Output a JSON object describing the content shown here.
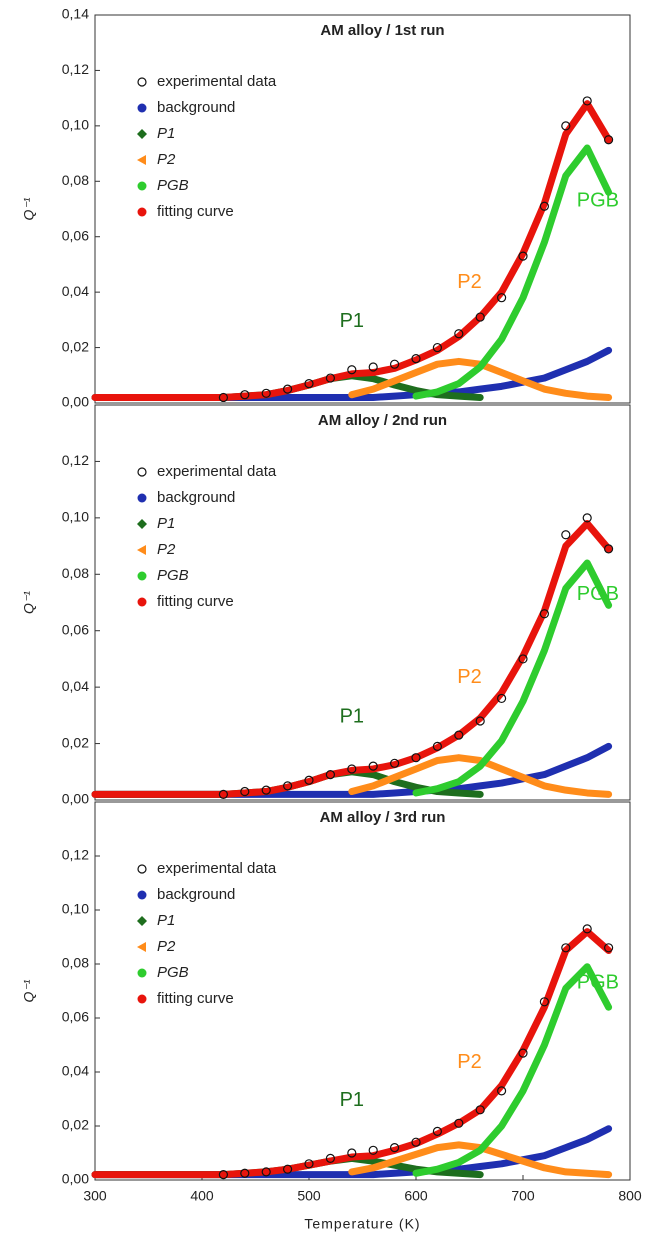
{
  "chart_data": [
    {
      "type": "scatter",
      "title": "AM alloy / 1st run",
      "ylabel": "Q⁻¹",
      "xlim": [
        300,
        800
      ],
      "ylim": [
        0,
        0.14
      ],
      "yticks": [
        {
          "value": 0,
          "label": "0,00"
        },
        {
          "value": 0.02,
          "label": "0,02"
        },
        {
          "value": 0.04,
          "label": "0,04"
        },
        {
          "value": 0.06,
          "label": "0,06"
        },
        {
          "value": 0.08,
          "label": "0,08"
        },
        {
          "value": 0.1,
          "label": "0,10"
        },
        {
          "value": 0.12,
          "label": "0,12"
        },
        {
          "value": 0.14,
          "label": "0,14"
        }
      ],
      "x": [
        300,
        320,
        340,
        360,
        380,
        400,
        420,
        440,
        460,
        480,
        500,
        520,
        540,
        560,
        580,
        600,
        620,
        640,
        660,
        680,
        700,
        720,
        740,
        760,
        780
      ],
      "series": [
        {
          "name": "experimental data",
          "color": "#111111",
          "marker": "open-circle",
          "values": [
            null,
            null,
            null,
            null,
            null,
            null,
            0.002,
            0.003,
            0.0035,
            0.005,
            0.007,
            0.009,
            0.012,
            0.013,
            0.014,
            0.016,
            0.02,
            0.025,
            0.031,
            0.038,
            0.053,
            0.071,
            0.1,
            0.109,
            0.095
          ]
        },
        {
          "name": "background",
          "color": "#1f2fb0",
          "marker": "circle",
          "values": [
            0.002,
            0.002,
            0.002,
            0.002,
            0.002,
            0.002,
            0.002,
            0.002,
            0.002,
            0.002,
            0.002,
            0.002,
            0.002,
            0.002,
            0.0025,
            0.003,
            0.0035,
            0.004,
            0.005,
            0.006,
            0.0075,
            0.009,
            0.012,
            0.015,
            0.019
          ]
        },
        {
          "name": "P1",
          "color": "#1e6e1e",
          "marker": "diamond",
          "values": [
            0.002,
            0.002,
            0.002,
            0.002,
            0.002,
            0.002,
            0.002,
            0.0025,
            0.003,
            0.0045,
            0.0065,
            0.0088,
            0.0098,
            0.0088,
            0.0065,
            0.0045,
            0.003,
            0.0025,
            0.002,
            null,
            null,
            null,
            null,
            null,
            null
          ]
        },
        {
          "name": "P2",
          "color": "#ff8c1a",
          "marker": "triangle",
          "values": [
            null,
            null,
            null,
            null,
            null,
            null,
            null,
            null,
            null,
            null,
            null,
            null,
            0.003,
            0.005,
            0.008,
            0.011,
            0.014,
            0.015,
            0.014,
            0.011,
            0.008,
            0.005,
            0.0035,
            0.0025,
            0.002
          ]
        },
        {
          "name": "PGB",
          "color": "#2ecc2e",
          "marker": "circle",
          "values": [
            null,
            null,
            null,
            null,
            null,
            null,
            null,
            null,
            null,
            null,
            null,
            null,
            null,
            null,
            null,
            0.0025,
            0.004,
            0.007,
            0.013,
            0.023,
            0.038,
            0.058,
            0.082,
            0.092,
            0.076
          ]
        },
        {
          "name": "fitting curve",
          "color": "#e8140c",
          "marker": "circle",
          "values": [
            0.002,
            0.002,
            0.002,
            0.002,
            0.002,
            0.002,
            0.002,
            0.0025,
            0.003,
            0.0045,
            0.0065,
            0.0088,
            0.0105,
            0.011,
            0.0125,
            0.0155,
            0.019,
            0.024,
            0.031,
            0.04,
            0.054,
            0.072,
            0.097,
            0.108,
            0.095
          ]
        }
      ],
      "annotations": [
        {
          "text": "P1",
          "color": "#1e6e1e"
        },
        {
          "text": "P2",
          "color": "#ff8c1a"
        },
        {
          "text": "PGB",
          "color": "#2ecc2e"
        }
      ]
    },
    {
      "type": "scatter",
      "title": "AM alloy / 2nd run",
      "ylabel": "Q⁻¹",
      "xlim": [
        300,
        800
      ],
      "ylim": [
        0,
        0.14
      ],
      "yticks": [
        {
          "value": 0,
          "label": "0,00"
        },
        {
          "value": 0.02,
          "label": "0,02"
        },
        {
          "value": 0.04,
          "label": "0,04"
        },
        {
          "value": 0.06,
          "label": "0,06"
        },
        {
          "value": 0.08,
          "label": "0,08"
        },
        {
          "value": 0.1,
          "label": "0,10"
        },
        {
          "value": 0.12,
          "label": "0,12"
        }
      ],
      "x": [
        300,
        320,
        340,
        360,
        380,
        400,
        420,
        440,
        460,
        480,
        500,
        520,
        540,
        560,
        580,
        600,
        620,
        640,
        660,
        680,
        700,
        720,
        740,
        760,
        780
      ],
      "series": [
        {
          "name": "experimental data",
          "color": "#111111",
          "marker": "open-circle",
          "values": [
            null,
            null,
            null,
            null,
            null,
            null,
            0.002,
            0.003,
            0.0035,
            0.005,
            0.007,
            0.009,
            0.011,
            0.012,
            0.013,
            0.015,
            0.019,
            0.023,
            0.028,
            0.036,
            0.05,
            0.066,
            0.094,
            0.1,
            0.089
          ]
        },
        {
          "name": "background",
          "color": "#1f2fb0",
          "marker": "circle",
          "values": [
            0.002,
            0.002,
            0.002,
            0.002,
            0.002,
            0.002,
            0.002,
            0.002,
            0.002,
            0.002,
            0.002,
            0.002,
            0.002,
            0.002,
            0.0025,
            0.003,
            0.0035,
            0.004,
            0.005,
            0.006,
            0.0075,
            0.009,
            0.012,
            0.015,
            0.019
          ]
        },
        {
          "name": "P1",
          "color": "#1e6e1e",
          "marker": "diamond",
          "values": [
            0.002,
            0.002,
            0.002,
            0.002,
            0.002,
            0.002,
            0.002,
            0.0025,
            0.003,
            0.0045,
            0.0065,
            0.009,
            0.01,
            0.009,
            0.0065,
            0.0045,
            0.003,
            0.0025,
            0.002,
            null,
            null,
            null,
            null,
            null,
            null
          ]
        },
        {
          "name": "P2",
          "color": "#ff8c1a",
          "marker": "triangle",
          "values": [
            null,
            null,
            null,
            null,
            null,
            null,
            null,
            null,
            null,
            null,
            null,
            null,
            0.003,
            0.005,
            0.008,
            0.011,
            0.014,
            0.015,
            0.014,
            0.011,
            0.008,
            0.005,
            0.0035,
            0.0025,
            0.002
          ]
        },
        {
          "name": "PGB",
          "color": "#2ecc2e",
          "marker": "circle",
          "values": [
            null,
            null,
            null,
            null,
            null,
            null,
            null,
            null,
            null,
            null,
            null,
            null,
            null,
            null,
            null,
            0.0025,
            0.004,
            0.0065,
            0.012,
            0.021,
            0.035,
            0.053,
            0.075,
            0.084,
            0.069
          ]
        },
        {
          "name": "fitting curve",
          "color": "#e8140c",
          "marker": "circle",
          "values": [
            0.002,
            0.002,
            0.002,
            0.002,
            0.002,
            0.002,
            0.002,
            0.0025,
            0.003,
            0.0045,
            0.0065,
            0.009,
            0.0105,
            0.011,
            0.0125,
            0.015,
            0.0185,
            0.023,
            0.029,
            0.038,
            0.051,
            0.067,
            0.09,
            0.098,
            0.089
          ]
        }
      ],
      "annotations": [
        {
          "text": "P1",
          "color": "#1e6e1e"
        },
        {
          "text": "P2",
          "color": "#ff8c1a"
        },
        {
          "text": "PGB",
          "color": "#2ecc2e"
        }
      ]
    },
    {
      "type": "scatter",
      "title": "AM alloy / 3rd run",
      "ylabel": "Q⁻¹",
      "xlabel": "Temperature (K)",
      "xlim": [
        300,
        800
      ],
      "ylim": [
        0,
        0.14
      ],
      "xticks": [
        300,
        400,
        500,
        600,
        700,
        800
      ],
      "yticks": [
        {
          "value": 0,
          "label": "0,00"
        },
        {
          "value": 0.02,
          "label": "0,02"
        },
        {
          "value": 0.04,
          "label": "0,04"
        },
        {
          "value": 0.06,
          "label": "0,06"
        },
        {
          "value": 0.08,
          "label": "0,08"
        },
        {
          "value": 0.1,
          "label": "0,10"
        },
        {
          "value": 0.12,
          "label": "0,12"
        }
      ],
      "x": [
        300,
        320,
        340,
        360,
        380,
        400,
        420,
        440,
        460,
        480,
        500,
        520,
        540,
        560,
        580,
        600,
        620,
        640,
        660,
        680,
        700,
        720,
        740,
        760,
        780
      ],
      "series": [
        {
          "name": "experimental data",
          "color": "#111111",
          "marker": "open-circle",
          "values": [
            null,
            null,
            null,
            null,
            null,
            null,
            0.002,
            0.0025,
            0.003,
            0.004,
            0.006,
            0.008,
            0.01,
            0.011,
            0.012,
            0.014,
            0.018,
            0.021,
            0.026,
            0.033,
            0.047,
            0.066,
            0.086,
            0.093,
            0.086
          ]
        },
        {
          "name": "background",
          "color": "#1f2fb0",
          "marker": "circle",
          "values": [
            0.002,
            0.002,
            0.002,
            0.002,
            0.002,
            0.002,
            0.002,
            0.002,
            0.002,
            0.002,
            0.002,
            0.002,
            0.002,
            0.002,
            0.0025,
            0.003,
            0.0035,
            0.004,
            0.005,
            0.006,
            0.0075,
            0.009,
            0.012,
            0.015,
            0.019
          ]
        },
        {
          "name": "P1",
          "color": "#1e6e1e",
          "marker": "diamond",
          "values": [
            0.002,
            0.002,
            0.002,
            0.002,
            0.002,
            0.002,
            0.002,
            0.0025,
            0.003,
            0.004,
            0.0055,
            0.007,
            0.008,
            0.007,
            0.0055,
            0.004,
            0.003,
            0.0025,
            0.002,
            null,
            null,
            null,
            null,
            null,
            null
          ]
        },
        {
          "name": "P2",
          "color": "#ff8c1a",
          "marker": "triangle",
          "values": [
            null,
            null,
            null,
            null,
            null,
            null,
            null,
            null,
            null,
            null,
            null,
            null,
            0.003,
            0.0045,
            0.007,
            0.0095,
            0.012,
            0.013,
            0.012,
            0.0095,
            0.007,
            0.0045,
            0.003,
            0.0025,
            0.002
          ]
        },
        {
          "name": "PGB",
          "color": "#2ecc2e",
          "marker": "circle",
          "values": [
            null,
            null,
            null,
            null,
            null,
            null,
            null,
            null,
            null,
            null,
            null,
            null,
            null,
            null,
            null,
            0.0025,
            0.004,
            0.0065,
            0.011,
            0.02,
            0.033,
            0.05,
            0.071,
            0.079,
            0.064
          ]
        },
        {
          "name": "fitting curve",
          "color": "#e8140c",
          "marker": "circle",
          "values": [
            0.002,
            0.002,
            0.002,
            0.002,
            0.002,
            0.002,
            0.002,
            0.0025,
            0.003,
            0.004,
            0.0055,
            0.007,
            0.0085,
            0.009,
            0.011,
            0.0135,
            0.017,
            0.021,
            0.026,
            0.035,
            0.048,
            0.064,
            0.085,
            0.092,
            0.085
          ]
        }
      ],
      "annotations": [
        {
          "text": "P1",
          "color": "#1e6e1e"
        },
        {
          "text": "P2",
          "color": "#ff8c1a"
        },
        {
          "text": "PGB",
          "color": "#2ecc2e"
        }
      ]
    }
  ]
}
